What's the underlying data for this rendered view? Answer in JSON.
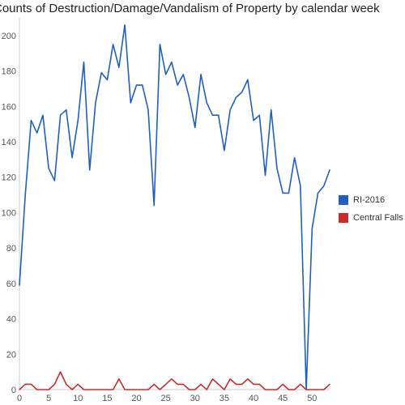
{
  "chart_data": {
    "type": "line",
    "title": "Counts of Destruction/Damage/Vandalism of Property by calendar week",
    "xlabel": "",
    "ylabel": "",
    "xlim": [
      0,
      53
    ],
    "ylim": [
      0,
      210
    ],
    "x_ticks": [
      0,
      5,
      10,
      15,
      20,
      25,
      30,
      35,
      40,
      45,
      50
    ],
    "y_ticks": [
      0,
      20,
      40,
      60,
      80,
      100,
      120,
      140,
      160,
      180,
      200
    ],
    "grid": false,
    "legend_position": "right",
    "x": [
      0,
      1,
      2,
      3,
      4,
      5,
      6,
      7,
      8,
      9,
      10,
      11,
      12,
      13,
      14,
      15,
      16,
      17,
      18,
      19,
      20,
      21,
      22,
      23,
      24,
      25,
      26,
      27,
      28,
      29,
      30,
      31,
      32,
      33,
      34,
      35,
      36,
      37,
      38,
      39,
      40,
      41,
      42,
      43,
      44,
      45,
      46,
      47,
      48,
      49,
      50,
      51,
      52,
      53
    ],
    "series": [
      {
        "name": "RI-2016",
        "color": "#1f5fbf",
        "values": [
          59,
          110,
          152,
          145,
          155,
          125,
          118,
          155,
          158,
          131,
          152,
          185,
          124,
          162,
          179,
          175,
          195,
          182,
          206,
          162,
          172,
          172,
          158,
          104,
          195,
          178,
          185,
          172,
          178,
          165,
          148,
          178,
          162,
          155,
          155,
          135,
          158,
          165,
          168,
          175,
          152,
          155,
          121,
          158,
          125,
          111,
          111,
          131,
          115,
          0,
          91,
          111,
          115,
          124
        ]
      },
      {
        "name": "Central Falls",
        "color": "#cc2a2a",
        "values": [
          0,
          3,
          3,
          0,
          0,
          0,
          3,
          10,
          3,
          0,
          3,
          0,
          0,
          0,
          0,
          0,
          0,
          6,
          0,
          0,
          0,
          0,
          0,
          3,
          0,
          3,
          6,
          3,
          3,
          0,
          0,
          3,
          0,
          6,
          3,
          0,
          6,
          3,
          3,
          6,
          3,
          3,
          0,
          0,
          0,
          3,
          0,
          0,
          3,
          0,
          0,
          0,
          0,
          3
        ]
      }
    ]
  }
}
